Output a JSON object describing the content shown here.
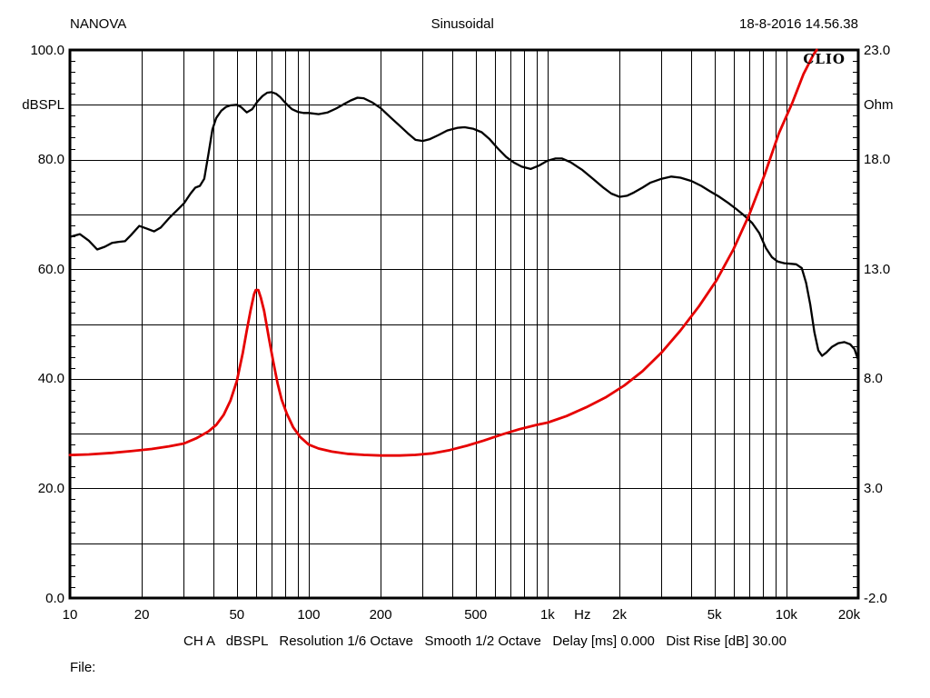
{
  "header": {
    "left": "NANOVA",
    "center": "Sinusoidal",
    "right": "18-8-2016 14.56.38"
  },
  "footer": {
    "status": "CH A   dBSPL   Resolution 1/6 Octave   Smooth 1/2 Octave   Delay [ms] 0.000   Dist Rise [dB] 30.00",
    "file_label": "File:"
  },
  "logo": "CLIO",
  "colors": {
    "response_curve": "#000000",
    "impedance_curve": "#e60000",
    "grid": "#000000",
    "background": "#ffffff"
  },
  "chart_data": {
    "type": "line",
    "title": "Sinusoidal",
    "x_scale": "log",
    "x_range": [
      10,
      20000
    ],
    "xlabel": "Hz",
    "grid": "on",
    "y_left": {
      "label": "dBSPL",
      "range": [
        0,
        100
      ],
      "grid_step": 10,
      "minor_tick_step": 2,
      "tick_values": [
        100,
        80,
        60,
        40,
        20,
        0
      ],
      "tick_labels": [
        "100.0",
        "80.0",
        "60.0",
        "40.0",
        "20.0",
        "0.0"
      ]
    },
    "y_right": {
      "label": "Ohm",
      "range": [
        -2,
        23
      ],
      "tick_values": [
        23,
        18,
        13,
        8,
        3,
        -2
      ],
      "tick_labels": [
        "23.0",
        "18.0",
        "13.0",
        "8.0",
        "3.0",
        "-2.0"
      ]
    },
    "x_tick_labels": [
      {
        "text": "10",
        "f": 10
      },
      {
        "text": "20",
        "f": 20
      },
      {
        "text": "50",
        "f": 50
      },
      {
        "text": "100",
        "f": 100
      },
      {
        "text": "200",
        "f": 200
      },
      {
        "text": "500",
        "f": 500
      },
      {
        "text": "1k",
        "f": 1000
      },
      {
        "text": "Hz",
        "f": 1400
      },
      {
        "text": "2k",
        "f": 2000
      },
      {
        "text": "5k",
        "f": 5000
      },
      {
        "text": "10k",
        "f": 10000
      },
      {
        "text": "20k",
        "f": 20000,
        "dx": -10
      }
    ],
    "series": [
      {
        "name": "frequency-response",
        "axis": "left",
        "unit": "dBSPL",
        "color": "#000000",
        "width": 2.3,
        "points": [
          [
            10,
            65.9
          ],
          [
            11,
            66.4
          ],
          [
            12,
            65.2
          ],
          [
            13,
            63.6
          ],
          [
            14,
            64.1
          ],
          [
            15,
            64.8
          ],
          [
            16,
            65.0
          ],
          [
            17,
            65.1
          ],
          [
            18,
            66.2
          ],
          [
            19.5,
            67.9
          ],
          [
            21,
            67.4
          ],
          [
            22.5,
            66.9
          ],
          [
            24,
            67.6
          ],
          [
            26,
            69.3
          ],
          [
            28,
            70.7
          ],
          [
            30,
            72.0
          ],
          [
            32,
            73.8
          ],
          [
            33.5,
            74.9
          ],
          [
            35,
            75.2
          ],
          [
            36.5,
            76.5
          ],
          [
            38,
            81.0
          ],
          [
            39.5,
            85.5
          ],
          [
            41,
            87.6
          ],
          [
            43,
            88.9
          ],
          [
            45,
            89.6
          ],
          [
            47,
            89.9
          ],
          [
            50,
            90.0
          ],
          [
            52,
            89.6
          ],
          [
            55,
            88.6
          ],
          [
            58,
            89.2
          ],
          [
            61,
            90.6
          ],
          [
            64,
            91.6
          ],
          [
            67,
            92.2
          ],
          [
            70,
            92.3
          ],
          [
            73,
            92.0
          ],
          [
            76,
            91.4
          ],
          [
            80,
            90.3
          ],
          [
            85,
            89.2
          ],
          [
            90,
            88.7
          ],
          [
            95,
            88.5
          ],
          [
            100,
            88.5
          ],
          [
            110,
            88.3
          ],
          [
            120,
            88.6
          ],
          [
            130,
            89.3
          ],
          [
            140,
            90.1
          ],
          [
            150,
            90.8
          ],
          [
            160,
            91.3
          ],
          [
            170,
            91.2
          ],
          [
            185,
            90.4
          ],
          [
            200,
            89.4
          ],
          [
            220,
            87.7
          ],
          [
            240,
            86.2
          ],
          [
            260,
            84.8
          ],
          [
            280,
            83.6
          ],
          [
            300,
            83.4
          ],
          [
            320,
            83.7
          ],
          [
            350,
            84.5
          ],
          [
            380,
            85.3
          ],
          [
            420,
            85.8
          ],
          [
            450,
            85.9
          ],
          [
            490,
            85.6
          ],
          [
            530,
            85.0
          ],
          [
            570,
            83.8
          ],
          [
            620,
            82.0
          ],
          [
            670,
            80.5
          ],
          [
            720,
            79.5
          ],
          [
            780,
            78.7
          ],
          [
            850,
            78.3
          ],
          [
            920,
            78.9
          ],
          [
            1000,
            79.8
          ],
          [
            1080,
            80.2
          ],
          [
            1150,
            80.2
          ],
          [
            1250,
            79.5
          ],
          [
            1400,
            78.1
          ],
          [
            1550,
            76.5
          ],
          [
            1700,
            75.0
          ],
          [
            1850,
            73.8
          ],
          [
            2000,
            73.2
          ],
          [
            2150,
            73.4
          ],
          [
            2300,
            74.0
          ],
          [
            2500,
            74.9
          ],
          [
            2700,
            75.8
          ],
          [
            3000,
            76.5
          ],
          [
            3300,
            76.9
          ],
          [
            3600,
            76.7
          ],
          [
            4000,
            76.1
          ],
          [
            4400,
            75.2
          ],
          [
            4800,
            74.2
          ],
          [
            5200,
            73.3
          ],
          [
            5700,
            72.1
          ],
          [
            6200,
            70.9
          ],
          [
            6700,
            69.7
          ],
          [
            7200,
            68.4
          ],
          [
            7700,
            66.6
          ],
          [
            8200,
            63.9
          ],
          [
            8700,
            62.2
          ],
          [
            9200,
            61.4
          ],
          [
            9800,
            61.1
          ],
          [
            10400,
            61.0
          ],
          [
            11000,
            60.9
          ],
          [
            11600,
            60.2
          ],
          [
            12100,
            57.5
          ],
          [
            12600,
            53.5
          ],
          [
            13100,
            48.5
          ],
          [
            13600,
            45.2
          ],
          [
            14100,
            44.2
          ],
          [
            14700,
            44.8
          ],
          [
            15500,
            45.8
          ],
          [
            16500,
            46.5
          ],
          [
            17500,
            46.7
          ],
          [
            18500,
            46.3
          ],
          [
            19300,
            45.4
          ],
          [
            20000,
            43.4
          ]
        ]
      },
      {
        "name": "impedance",
        "axis": "right",
        "unit": "Ohm",
        "color": "#e60000",
        "width": 2.8,
        "points": [
          [
            10,
            4.52
          ],
          [
            12,
            4.55
          ],
          [
            15,
            4.62
          ],
          [
            18,
            4.7
          ],
          [
            22,
            4.8
          ],
          [
            26,
            4.92
          ],
          [
            30,
            5.05
          ],
          [
            34,
            5.3
          ],
          [
            38,
            5.6
          ],
          [
            41,
            5.9
          ],
          [
            44,
            6.35
          ],
          [
            47,
            7.0
          ],
          [
            50,
            7.9
          ],
          [
            53,
            9.2
          ],
          [
            55,
            10.2
          ],
          [
            57,
            11.1
          ],
          [
            59,
            11.85
          ],
          [
            60,
            12.05
          ],
          [
            61.5,
            12.05
          ],
          [
            63,
            11.7
          ],
          [
            65,
            11.1
          ],
          [
            68,
            9.9
          ],
          [
            71,
            8.8
          ],
          [
            74,
            7.8
          ],
          [
            77,
            7.05
          ],
          [
            81,
            6.4
          ],
          [
            86,
            5.8
          ],
          [
            92,
            5.35
          ],
          [
            100,
            5.0
          ],
          [
            110,
            4.82
          ],
          [
            125,
            4.68
          ],
          [
            145,
            4.58
          ],
          [
            170,
            4.53
          ],
          [
            200,
            4.5
          ],
          [
            240,
            4.5
          ],
          [
            280,
            4.53
          ],
          [
            330,
            4.6
          ],
          [
            390,
            4.75
          ],
          [
            460,
            4.95
          ],
          [
            540,
            5.18
          ],
          [
            640,
            5.45
          ],
          [
            760,
            5.7
          ],
          [
            900,
            5.9
          ],
          [
            1000,
            6.0
          ],
          [
            1200,
            6.3
          ],
          [
            1450,
            6.7
          ],
          [
            1750,
            7.15
          ],
          [
            2100,
            7.7
          ],
          [
            2500,
            8.35
          ],
          [
            3000,
            9.2
          ],
          [
            3600,
            10.2
          ],
          [
            4300,
            11.3
          ],
          [
            5100,
            12.5
          ],
          [
            6000,
            13.9
          ],
          [
            7000,
            15.5
          ],
          [
            8100,
            17.3
          ],
          [
            9300,
            19.2
          ],
          [
            10600,
            20.6
          ],
          [
            11800,
            21.9
          ],
          [
            13000,
            22.8
          ],
          [
            13400,
            23.0
          ]
        ]
      }
    ]
  }
}
